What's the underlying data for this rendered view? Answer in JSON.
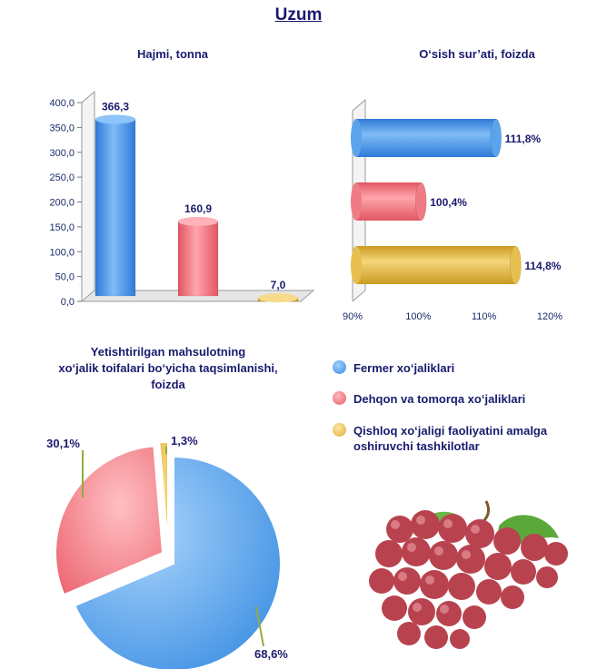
{
  "page_title": "Uzum",
  "chart_data": [
    {
      "type": "bar",
      "title": "Hajmi, tonna",
      "categories": [
        "Fermer xo‘jaliklari",
        "Dehqon va tomorqa xo‘jaliklari",
        "Qishloq xo‘jaligi faoliyatini amalga oshiruvchi tashkilotlar"
      ],
      "values": [
        366.3,
        160.9,
        7.0
      ],
      "value_labels": [
        "366,3",
        "160,9",
        "7,0"
      ],
      "y_ticks": [
        "0,0",
        "50,0",
        "100,0",
        "150,0",
        "200,0",
        "250,0",
        "300,0",
        "350,0",
        "400,0"
      ],
      "ylim": [
        0,
        400
      ],
      "colors": [
        "#4f9ee8",
        "#f0707a",
        "#e8b840"
      ]
    },
    {
      "type": "bar",
      "orientation": "horizontal",
      "title": "O‘sish sur’ati, foizda",
      "categories": [
        "Fermer xo‘jaliklari",
        "Dehqon va tomorqa xo‘jaliklari",
        "Qishloq xo‘jaligi faoliyatini amalga oshiruvchi tashkilotlar"
      ],
      "values": [
        111.8,
        100.4,
        114.8
      ],
      "value_labels": [
        "111,8%",
        "100,4%",
        "114,8%"
      ],
      "x_ticks": [
        "90%",
        "100%",
        "110%",
        "120%"
      ],
      "xlim": [
        90,
        120
      ],
      "colors": [
        "#4f9ee8",
        "#f0707a",
        "#e8b840"
      ]
    },
    {
      "type": "pie",
      "title_lines": [
        "Yetishtirilgan mahsulotning",
        "xo‘jalik toifalari bo‘yicha taqsimlanishi,",
        "foizda"
      ],
      "categories": [
        "Fermer xo‘jaliklari",
        "Dehqon va tomorqa xo‘jaliklari",
        "Qishloq xo‘jaligi faoliyatini amalga oshiruvchi tashkilotlar"
      ],
      "values": [
        68.6,
        30.1,
        1.3
      ],
      "value_labels": [
        "68,6%",
        "30,1%",
        "1,3%"
      ],
      "colors": [
        "#4f9ee8",
        "#f0707a",
        "#e8b840"
      ]
    }
  ],
  "legend": [
    {
      "label": "Fermer xo‘jaliklari",
      "color": "#4f9ee8"
    },
    {
      "label": "Dehqon va tomorqa xo‘jaliklari",
      "color": "#f0707a"
    },
    {
      "label": "Qishloq xo‘jaligi faoliyatini amalga oshiruvchi tashkilotlar",
      "color": "#e8b840"
    }
  ]
}
